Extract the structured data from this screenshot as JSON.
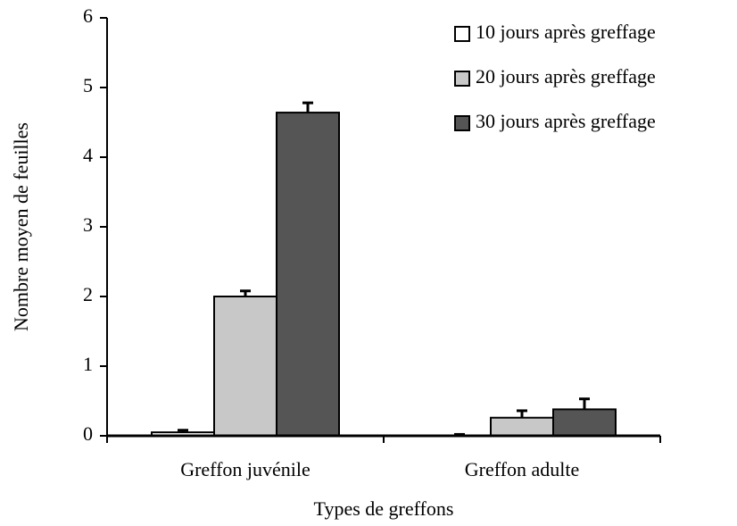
{
  "chart_data": {
    "type": "bar",
    "x_label": "Types de greffons",
    "y_label": "Nombre moyen de feuilles",
    "categories": [
      "Greffon juvénile",
      "Greffon adulte"
    ],
    "series": [
      {
        "name": "10 jours après greffage",
        "color": "#ffffff",
        "values": [
          0.05,
          0
        ],
        "errors": [
          0.03,
          0.02
        ]
      },
      {
        "name": "20 jours après greffage",
        "color": "#c8c8c8",
        "values": [
          2.0,
          0.26
        ],
        "errors": [
          0.08,
          0.1
        ]
      },
      {
        "name": "30 jours après greffage",
        "color": "#555555",
        "values": [
          4.64,
          0.38
        ],
        "errors": [
          0.14,
          0.15
        ]
      }
    ],
    "ylim": [
      0,
      6
    ],
    "yticks": [
      0,
      1,
      2,
      3,
      4,
      5,
      6
    ],
    "legend": "upper right"
  }
}
